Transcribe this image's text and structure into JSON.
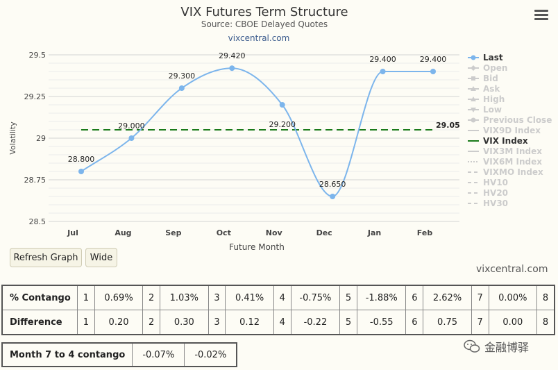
{
  "chart_data": {
    "type": "line",
    "title": "VIX Futures Term Structure",
    "subtitle": "Source: CBOE Delayed Quotes",
    "subtitle2": "vixcentral.com",
    "xlabel": "Future Month",
    "ylabel": "Volatility",
    "categories": [
      "Jul",
      "Aug",
      "Sep",
      "Oct",
      "Nov",
      "Dec",
      "Jan",
      "Feb"
    ],
    "ylim": [
      28.5,
      29.5
    ],
    "yticks": [
      "28.5",
      "28.75",
      "29",
      "29.25",
      "29.5"
    ],
    "grid": true,
    "legend_position": "right",
    "series": [
      {
        "name": "Last",
        "values": [
          28.8,
          29.0,
          29.3,
          29.42,
          29.2,
          28.65,
          29.4,
          29.4
        ],
        "labels": [
          "28.800",
          "29.000",
          "29.300",
          "29.420",
          "29.200",
          "28.650",
          "29.400",
          "29.400"
        ],
        "color": "#7cb5ec"
      },
      {
        "name": "VIX Index",
        "values": [
          29.05,
          29.05,
          29.05,
          29.05,
          29.05,
          29.05,
          29.05,
          29.05
        ],
        "end_label": "29.05",
        "color": "#1a7a1a"
      }
    ],
    "legend": [
      {
        "name": "Last",
        "active": true,
        "marker": "circle"
      },
      {
        "name": "Open",
        "active": false,
        "marker": "diamond"
      },
      {
        "name": "Bid",
        "active": false,
        "marker": "square"
      },
      {
        "name": "Ask",
        "active": false,
        "marker": "triangle"
      },
      {
        "name": "High",
        "active": false,
        "marker": "triangle"
      },
      {
        "name": "Low",
        "active": false,
        "marker": "triangle-down"
      },
      {
        "name": "Previous Close",
        "active": false,
        "marker": "circle"
      },
      {
        "name": "VIX9D Index",
        "active": false,
        "marker": "line"
      },
      {
        "name": "VIX Index",
        "active": true,
        "marker": "line-green"
      },
      {
        "name": "VIX3M Index",
        "active": false,
        "marker": "line"
      },
      {
        "name": "VIX6M Index",
        "active": false,
        "marker": "dotted"
      },
      {
        "name": "VIXMO Index",
        "active": false,
        "marker": "dashed"
      },
      {
        "name": "HV10",
        "active": false,
        "marker": "dashed"
      },
      {
        "name": "HV20",
        "active": false,
        "marker": "dashed"
      },
      {
        "name": "HV30",
        "active": false,
        "marker": "dashed"
      }
    ]
  },
  "buttons": {
    "refresh": "Refresh Graph",
    "wide": "Wide"
  },
  "watermark": "vixcentral.com",
  "table": {
    "contango_label": "% Contango",
    "difference_label": "Difference",
    "contango": [
      {
        "n": "1",
        "v": "0.69%"
      },
      {
        "n": "2",
        "v": "1.03%"
      },
      {
        "n": "3",
        "v": "0.41%"
      },
      {
        "n": "4",
        "v": "-0.75%"
      },
      {
        "n": "5",
        "v": "-1.88%"
      },
      {
        "n": "6",
        "v": "2.62%"
      },
      {
        "n": "7",
        "v": "0.00%"
      },
      {
        "n": "8",
        "v": ""
      }
    ],
    "difference": [
      {
        "n": "1",
        "v": "0.20"
      },
      {
        "n": "2",
        "v": "0.30"
      },
      {
        "n": "3",
        "v": "0.12"
      },
      {
        "n": "4",
        "v": "-0.22"
      },
      {
        "n": "5",
        "v": "-0.55"
      },
      {
        "n": "6",
        "v": "0.75"
      },
      {
        "n": "7",
        "v": "0.00"
      },
      {
        "n": "8",
        "v": ""
      }
    ]
  },
  "month7to4": {
    "label": "Month 7 to 4 contango",
    "v1": "-0.07%",
    "v2": "-0.02%"
  },
  "wechat": "金融博驿",
  "icons": {
    "menu": "hamburger-menu-icon",
    "wechat": "wechat-icon"
  }
}
